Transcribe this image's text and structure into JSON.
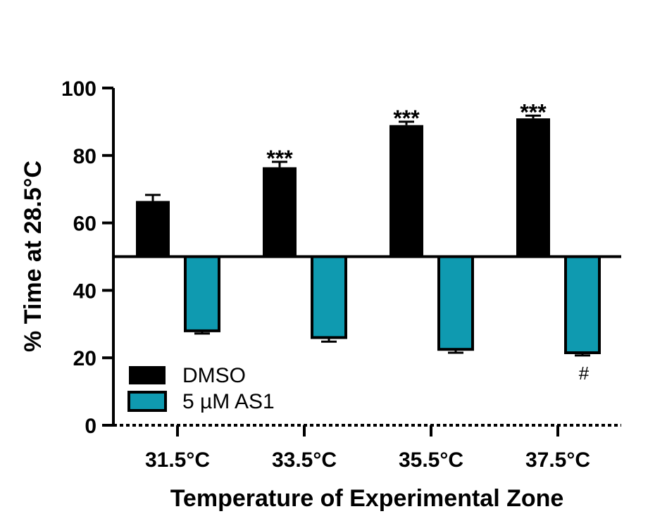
{
  "chart_data": {
    "type": "bar",
    "title": "",
    "xlabel": "Temperature of Experimental Zone",
    "ylabel": "% Time at 28.5°C",
    "ylim": [
      0,
      100
    ],
    "yticks": [
      "0",
      "20",
      "40",
      "60",
      "80",
      "100"
    ],
    "baseline": 50,
    "categories": [
      "31.5°C",
      "33.5°C",
      "35.5°C",
      "37.5°C"
    ],
    "series": [
      {
        "name": "DMSO",
        "color": "#000000",
        "values": [
          66.5,
          76.5,
          89,
          91
        ],
        "errors": [
          1.8,
          1.6,
          1.0,
          0.8
        ]
      },
      {
        "name": "5 µM AS1",
        "color": "#0f9ab0",
        "values": [
          28,
          26,
          22.5,
          21.5
        ],
        "errors": [
          0.8,
          1.2,
          1.0,
          0.8
        ]
      }
    ],
    "annotations": [
      {
        "series": "DMSO",
        "category": "33.5°C",
        "text": "***"
      },
      {
        "series": "DMSO",
        "category": "35.5°C",
        "text": "***"
      },
      {
        "series": "DMSO",
        "category": "37.5°C",
        "text": "***"
      },
      {
        "series": "5 µM AS1",
        "category": "37.5°C",
        "text": "#"
      }
    ],
    "legend": {
      "position": "bottom-left"
    }
  }
}
